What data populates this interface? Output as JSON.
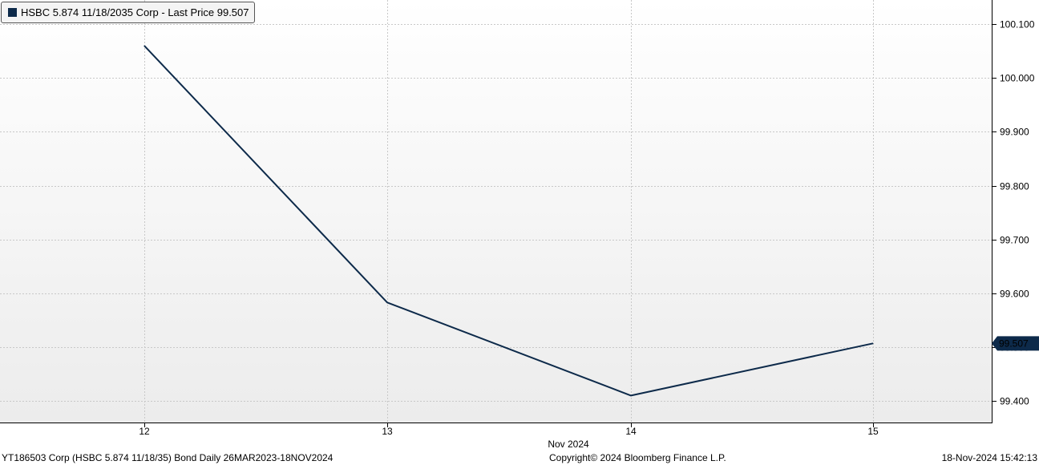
{
  "legend": {
    "label": "HSBC 5.874 11/18/2035 Corp - Last Price 99.507",
    "swatch_color": "#0d2a4a"
  },
  "footer": {
    "left": "YT186503 Corp (HSBC 5.874 11/18/35) Bond  Daily 26MAR2023-18NOV2024",
    "center": "Copyright© 2024 Bloomberg Finance L.P.",
    "right": "18-Nov-2024 15:42:13"
  },
  "chart_data": {
    "type": "line",
    "title": "",
    "xlabel": "Nov 2024",
    "ylabel": "",
    "categories": [
      "12",
      "13",
      "14",
      "15"
    ],
    "series": [
      {
        "name": "HSBC 5.874 11/18/2035 Corp - Last Price",
        "color": "#0d2a4a",
        "values": [
          100.06,
          99.583,
          99.41,
          99.507
        ]
      }
    ],
    "ylim": [
      99.36,
      100.145
    ],
    "yticks": [
      "99.400",
      "99.500",
      "99.600",
      "99.700",
      "99.800",
      "99.900",
      "100.000",
      "100.100"
    ],
    "last_value_label": "99.507",
    "axis_side": "right",
    "grid": true,
    "legend_position": "top-left"
  }
}
